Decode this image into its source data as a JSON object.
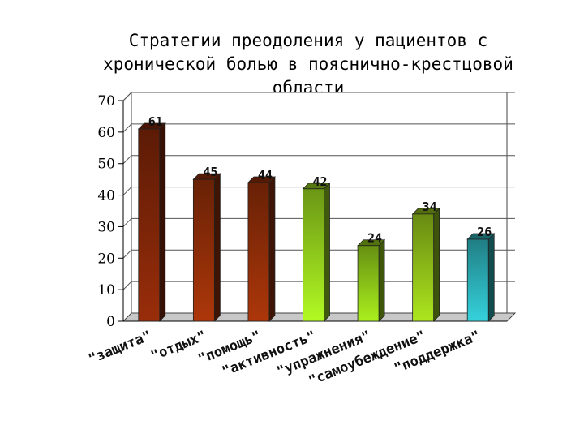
{
  "chart_data": {
    "type": "bar",
    "title": "Стратегии преодоления у пациентов с хронической болью в пояснично-крестцовой области",
    "categories": [
      "\"защита\"",
      "\"отдых\"",
      "\"помощь\"",
      "\"активность\"",
      "\"упражнения\"",
      "\"самоубеждение\"",
      "\"поддержка\""
    ],
    "values": [
      61,
      45,
      44,
      42,
      24,
      34,
      26
    ],
    "ylim": [
      0,
      70
    ],
    "yticks": [
      0,
      10,
      20,
      30,
      40,
      50,
      60,
      70
    ],
    "grid": true,
    "xlabel": "",
    "ylabel": "",
    "colors": [
      "#7a2408",
      "#8a2c08",
      "#8a2c08",
      "#8ec81c",
      "#88c018",
      "#8ab818",
      "#2aa8b0"
    ]
  }
}
